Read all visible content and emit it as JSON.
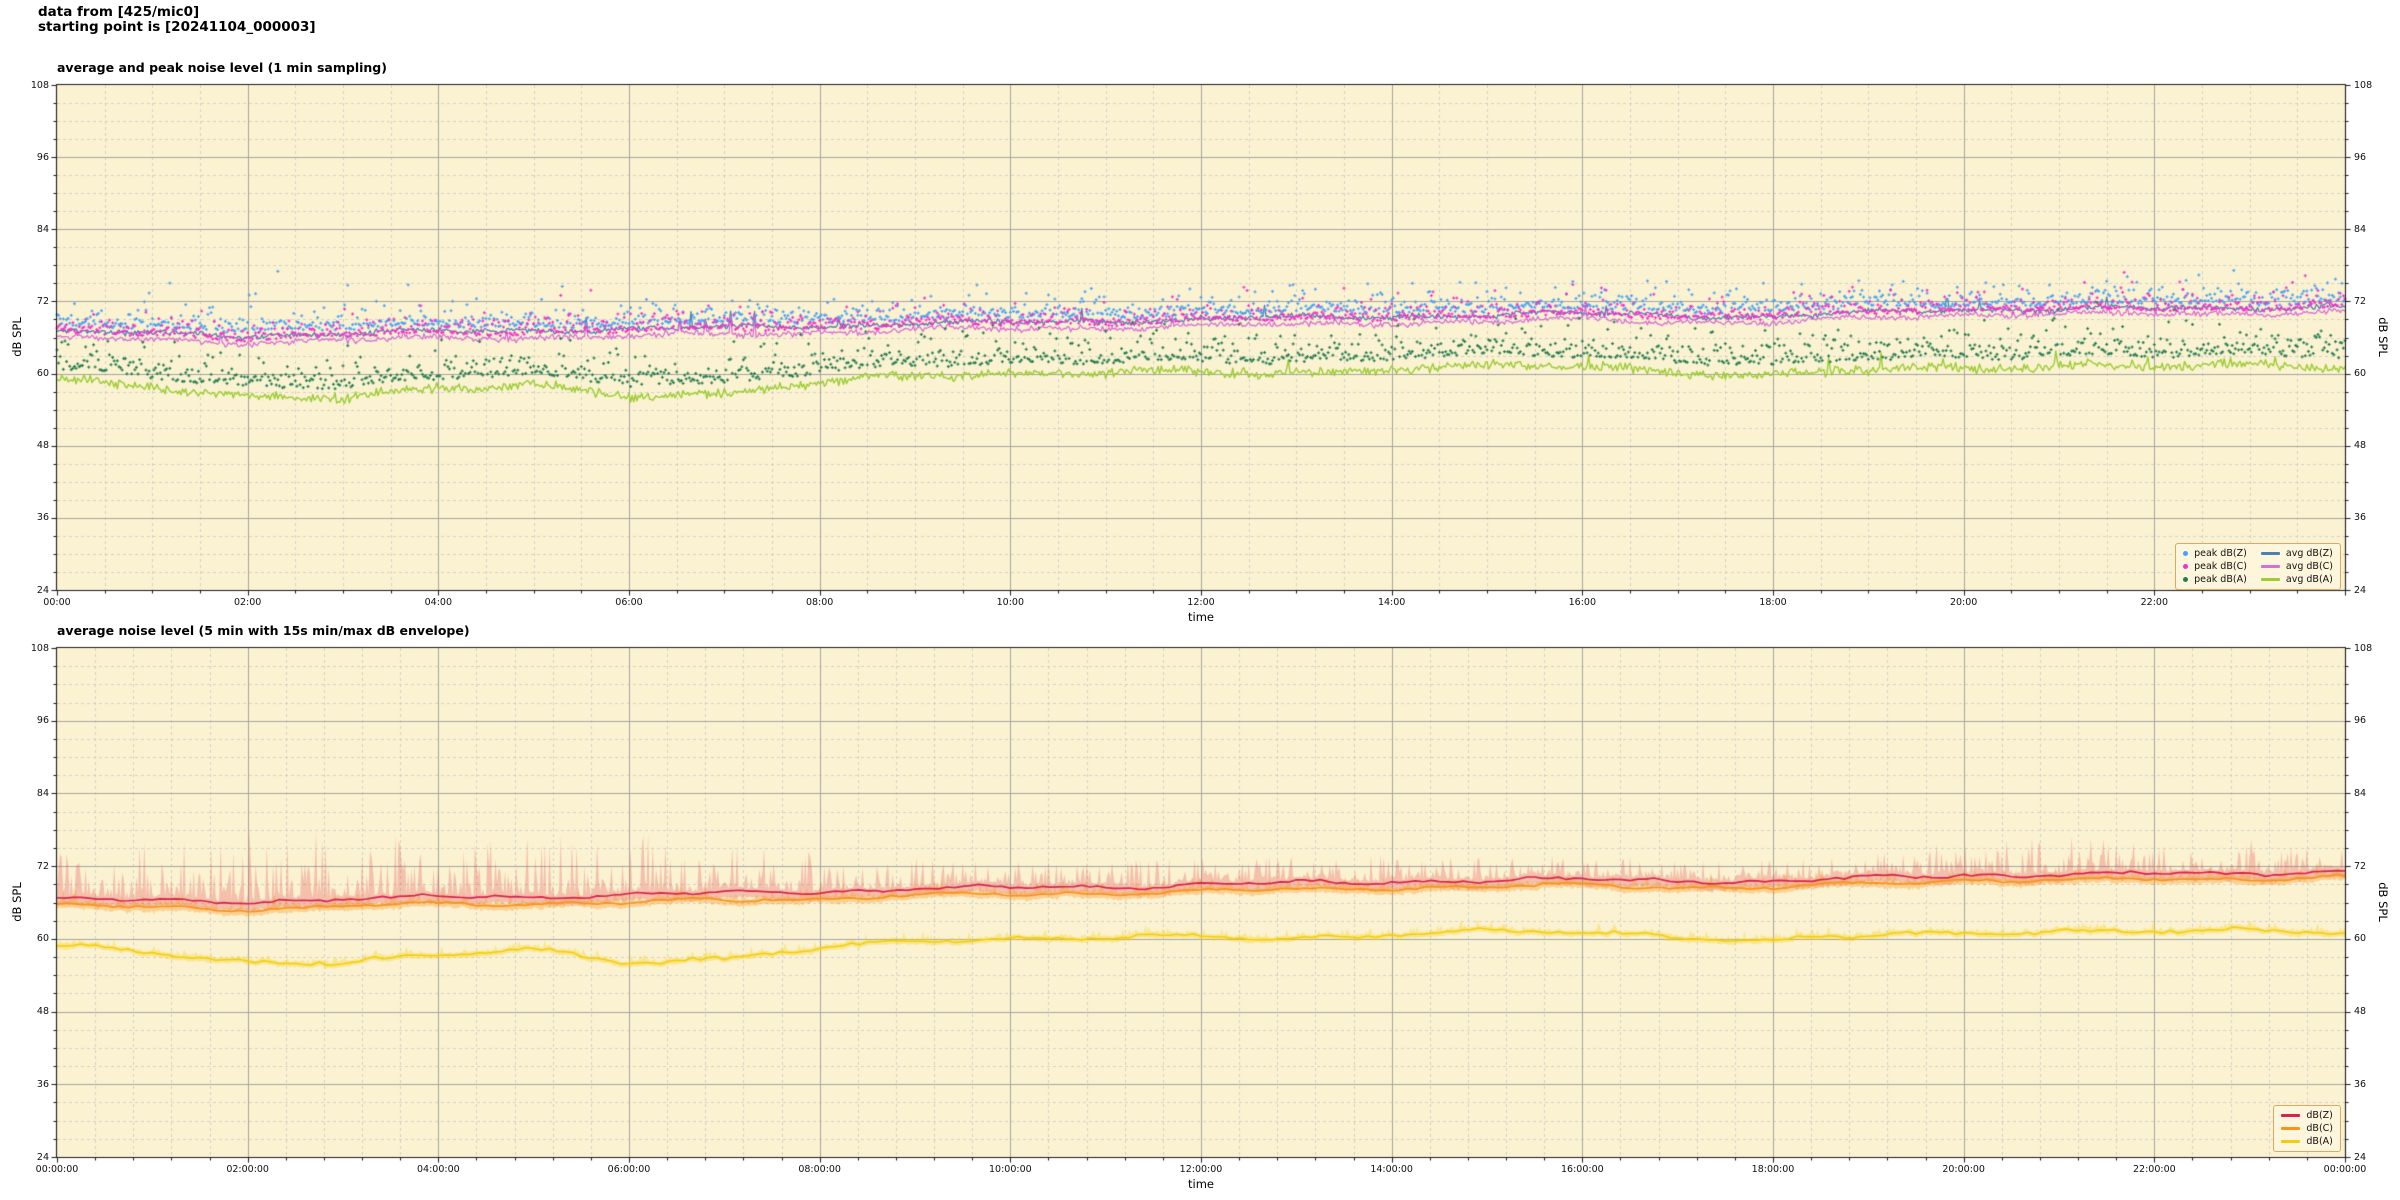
{
  "header": {
    "line1": "data from [425/mic0]",
    "line2": "starting point is [20241104_000003]"
  },
  "colors": {
    "figure_bg": "#ffffff",
    "plot_bg": "#fbf2d2",
    "grid_major": "#a6a69e",
    "grid_minor": "#c9c9c1",
    "axis_spine": "#1b1b1b",
    "legend_bg": "#fdf6dc",
    "legend_border": "#d9a968",
    "envelope_dbZ": "rgba(225,60,70,0.27)",
    "envelope_dbC": "rgba(250,150,30,0.35)",
    "envelope_dbA": "rgba(250,210,20,0.38)"
  },
  "chart_data": [
    {
      "type": "scatter",
      "title": "average and peak noise level (1 min sampling)",
      "xlabel": "time",
      "ylabel": "dB SPL",
      "ylim": [
        24,
        108
      ],
      "yticks": [
        24,
        36,
        48,
        60,
        72,
        84,
        96,
        108
      ],
      "y_minor_step": 3,
      "xlim_hours": [
        0,
        24
      ],
      "xtick_hours": [
        0,
        2,
        4,
        6,
        8,
        10,
        12,
        14,
        16,
        18,
        20,
        22
      ],
      "xtick_labels": [
        "00:00",
        "02:00",
        "04:00",
        "06:00",
        "08:00",
        "10:00",
        "12:00",
        "14:00",
        "16:00",
        "18:00",
        "20:00",
        "22:00"
      ],
      "x_minor_hours": 0.5,
      "grid": true,
      "legend_position": "lower right",
      "legend": [
        {
          "label": "peak dB(Z)",
          "marker": "dot",
          "color": "#49a2f3"
        },
        {
          "label": "peak dB(C)",
          "marker": "dot",
          "color": "#f332cb"
        },
        {
          "label": "peak dB(A)",
          "marker": "dot",
          "color": "#237d4e"
        },
        {
          "label": "avg dB(Z)",
          "marker": "line",
          "color": "#4d80b2"
        },
        {
          "label": "avg dB(C)",
          "marker": "line",
          "color": "#d76fd6"
        },
        {
          "label": "avg dB(A)",
          "marker": "line",
          "color": "#9ccd33"
        }
      ],
      "series": {
        "hours": [
          0,
          1,
          2,
          3,
          4,
          5,
          6,
          7,
          8,
          9,
          10,
          11,
          12,
          13,
          14,
          15,
          16,
          17,
          18,
          19,
          20,
          21,
          22,
          23,
          24
        ],
        "avg_dbZ_hourly": [
          67.0,
          66.6,
          66.4,
          66.6,
          67.0,
          67.2,
          67.3,
          67.6,
          68.0,
          68.3,
          68.5,
          68.8,
          69.0,
          69.3,
          69.6,
          69.6,
          70.0,
          69.8,
          69.4,
          70.2,
          70.8,
          70.6,
          70.8,
          71.0,
          71.2
        ],
        "avg_dbC_hourly": [
          66.0,
          65.5,
          65.2,
          65.5,
          65.9,
          66.1,
          66.2,
          66.5,
          66.9,
          67.2,
          67.4,
          67.7,
          67.9,
          68.2,
          68.6,
          68.6,
          69.0,
          68.8,
          68.4,
          69.3,
          69.9,
          69.7,
          69.9,
          70.1,
          70.3
        ],
        "avg_dbA_hourly": [
          58.6,
          57.6,
          56.4,
          56.2,
          57.0,
          58.3,
          56.6,
          56.5,
          58.2,
          60.0,
          60.2,
          60.0,
          60.2,
          60.4,
          60.8,
          61.0,
          61.2,
          60.6,
          59.6,
          60.4,
          61.0,
          61.6,
          61.0,
          61.2,
          61.4
        ],
        "peak_spread_dbZ_hourly": [
          6,
          7,
          11,
          9,
          7,
          7,
          9,
          8,
          6,
          5,
          5.5,
          5.5,
          7,
          6,
          6,
          5.5,
          5.5,
          5,
          5.5,
          5.5,
          6.5,
          9,
          7.5,
          7.5,
          7
        ]
      },
      "avg_dbZ_spike_hours": [
        5.55,
        6.53,
        6.8,
        7.07,
        7.32
      ]
    },
    {
      "type": "line",
      "title": "average noise level (5 min with 15s min/max dB envelope)",
      "xlabel": "time",
      "ylabel": "dB SPL",
      "ylim": [
        24,
        108
      ],
      "yticks": [
        24,
        36,
        48,
        60,
        72,
        84,
        96,
        108
      ],
      "y_minor_step": 3,
      "xlim_hours": [
        0,
        24
      ],
      "xtick_hours": [
        0,
        2,
        4,
        6,
        8,
        10,
        12,
        14,
        16,
        18,
        20,
        22,
        24
      ],
      "xtick_labels": [
        "00:00:00",
        "02:00:00",
        "04:00:00",
        "06:00:00",
        "08:00:00",
        "10:00:00",
        "12:00:00",
        "14:00:00",
        "16:00:00",
        "18:00:00",
        "20:00:00",
        "22:00:00",
        "00:00:00"
      ],
      "x_minor_hours": 0.4,
      "grid": true,
      "legend_position": "lower right",
      "legend": [
        {
          "label": "dB(Z)",
          "marker": "line",
          "color": "#d8234c"
        },
        {
          "label": "dB(C)",
          "marker": "line",
          "color": "#f7941e"
        },
        {
          "label": "dB(A)",
          "marker": "line",
          "color": "#f2cd0a"
        }
      ],
      "series": {
        "hours": [
          0,
          1,
          2,
          3,
          4,
          5,
          6,
          7,
          8,
          9,
          10,
          11,
          12,
          13,
          14,
          15,
          16,
          17,
          18,
          19,
          20,
          21,
          22,
          23,
          24
        ],
        "dbZ_hourly": [
          66.6,
          66.2,
          66.2,
          66.5,
          66.9,
          67.1,
          67.2,
          67.5,
          67.9,
          68.2,
          68.4,
          68.7,
          68.9,
          69.2,
          69.5,
          69.5,
          69.9,
          69.7,
          69.3,
          70.1,
          70.7,
          70.5,
          70.7,
          70.9,
          71.1
        ],
        "dbC_hourly": [
          65.6,
          65.2,
          65.0,
          65.3,
          65.7,
          65.9,
          66.0,
          66.3,
          66.8,
          67.1,
          67.3,
          67.6,
          67.8,
          68.1,
          68.5,
          68.5,
          68.9,
          68.7,
          68.3,
          69.2,
          69.8,
          69.6,
          69.8,
          70.0,
          70.2
        ],
        "dbA_hourly": [
          58.6,
          57.6,
          56.4,
          56.2,
          57.0,
          58.3,
          56.6,
          56.5,
          58.2,
          60.0,
          60.2,
          60.0,
          60.2,
          60.4,
          60.8,
          61.0,
          61.2,
          60.6,
          59.6,
          60.4,
          61.0,
          61.6,
          61.0,
          61.2,
          61.4
        ],
        "env_max_dbZ_hourly": [
          72.5,
          74,
          75.5,
          75,
          74.5,
          75,
          75.5,
          74.5,
          73,
          72,
          72,
          72,
          72.3,
          72.5,
          72.5,
          72.3,
          72.5,
          72,
          71.8,
          73.5,
          74.5,
          75.5,
          74.5,
          75,
          75.5
        ]
      }
    }
  ]
}
